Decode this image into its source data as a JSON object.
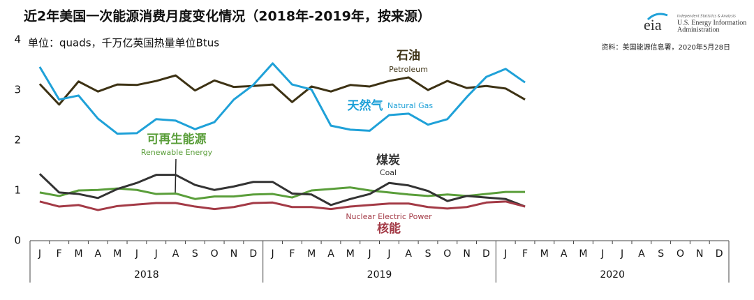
{
  "chart_data": {
    "type": "line",
    "title": "近2年美国一次能源消费月度变化情况（2018年-2019年，按来源）",
    "subtitle": "单位：quads，千万亿英国热量单位Btus",
    "source": "资料：美国能源信息署，2020年5月28日",
    "logo": {
      "mark": "eia",
      "tagline": "Independent Statistics & Analysis",
      "line1": "U.S. Energy Information",
      "line2": "Administration"
    },
    "categories": [
      "J",
      "F",
      "M",
      "A",
      "M",
      "J",
      "J",
      "A",
      "S",
      "O",
      "N",
      "D",
      "J",
      "F",
      "M",
      "A",
      "M",
      "J",
      "J",
      "A",
      "S",
      "O",
      "N",
      "D",
      "J",
      "F",
      "M",
      "A",
      "M",
      "J",
      "J",
      "A",
      "S",
      "O",
      "N",
      "D"
    ],
    "years": [
      "2018",
      "2019",
      "2020"
    ],
    "ylim": [
      0,
      4
    ],
    "yticks": [
      0,
      1,
      2,
      3,
      4
    ],
    "series": [
      {
        "name": "石油",
        "name_en": "Petroleum",
        "color": "#3d3214",
        "values": [
          3.12,
          2.71,
          3.17,
          2.97,
          3.11,
          3.1,
          3.18,
          3.29,
          2.99,
          3.19,
          3.06,
          3.08,
          3.11,
          2.76,
          3.07,
          2.97,
          3.1,
          3.07,
          3.18,
          3.25,
          3.0,
          3.18,
          3.04,
          3.08,
          3.03,
          2.81,
          null,
          null,
          null,
          null,
          null,
          null,
          null,
          null,
          null,
          null
        ]
      },
      {
        "name": "天然气",
        "name_en": "Natural Gas",
        "color": "#1fa1d8",
        "values": [
          3.46,
          2.81,
          2.89,
          2.43,
          2.13,
          2.14,
          2.42,
          2.39,
          2.22,
          2.36,
          2.81,
          3.1,
          3.53,
          3.11,
          3.01,
          2.29,
          2.21,
          2.19,
          2.5,
          2.53,
          2.31,
          2.42,
          2.86,
          3.26,
          3.42,
          3.15,
          null,
          null,
          null,
          null,
          null,
          null,
          null,
          null,
          null,
          null
        ]
      },
      {
        "name": "可再生能源",
        "name_en": "Renewable Energy",
        "color": "#5a9e3a",
        "values": [
          0.96,
          0.89,
          1.0,
          1.01,
          1.04,
          1.01,
          0.93,
          0.94,
          0.83,
          0.88,
          0.88,
          0.92,
          0.93,
          0.86,
          1.0,
          1.03,
          1.06,
          1.0,
          0.96,
          0.92,
          0.89,
          0.92,
          0.89,
          0.93,
          0.97,
          0.97,
          null,
          null,
          null,
          null,
          null,
          null,
          null,
          null,
          null,
          null
        ]
      },
      {
        "name": "煤炭",
        "name_en": "Coal",
        "color": "#333333",
        "values": [
          1.33,
          0.96,
          0.93,
          0.85,
          1.03,
          1.15,
          1.31,
          1.31,
          1.11,
          1.01,
          1.08,
          1.17,
          1.17,
          0.94,
          0.92,
          0.71,
          0.83,
          0.93,
          1.15,
          1.1,
          0.99,
          0.79,
          0.89,
          0.86,
          0.83,
          0.68,
          null,
          null,
          null,
          null,
          null,
          null,
          null,
          null,
          null,
          null
        ]
      },
      {
        "name": "核能",
        "name_en": "Nuclear Electric Power",
        "color": "#a33a46",
        "values": [
          0.78,
          0.68,
          0.71,
          0.61,
          0.69,
          0.72,
          0.75,
          0.75,
          0.68,
          0.63,
          0.67,
          0.75,
          0.76,
          0.67,
          0.67,
          0.63,
          0.68,
          0.71,
          0.74,
          0.74,
          0.67,
          0.64,
          0.67,
          0.76,
          0.78,
          0.68,
          null,
          null,
          null,
          null,
          null,
          null,
          null,
          null,
          null,
          null
        ]
      }
    ]
  }
}
